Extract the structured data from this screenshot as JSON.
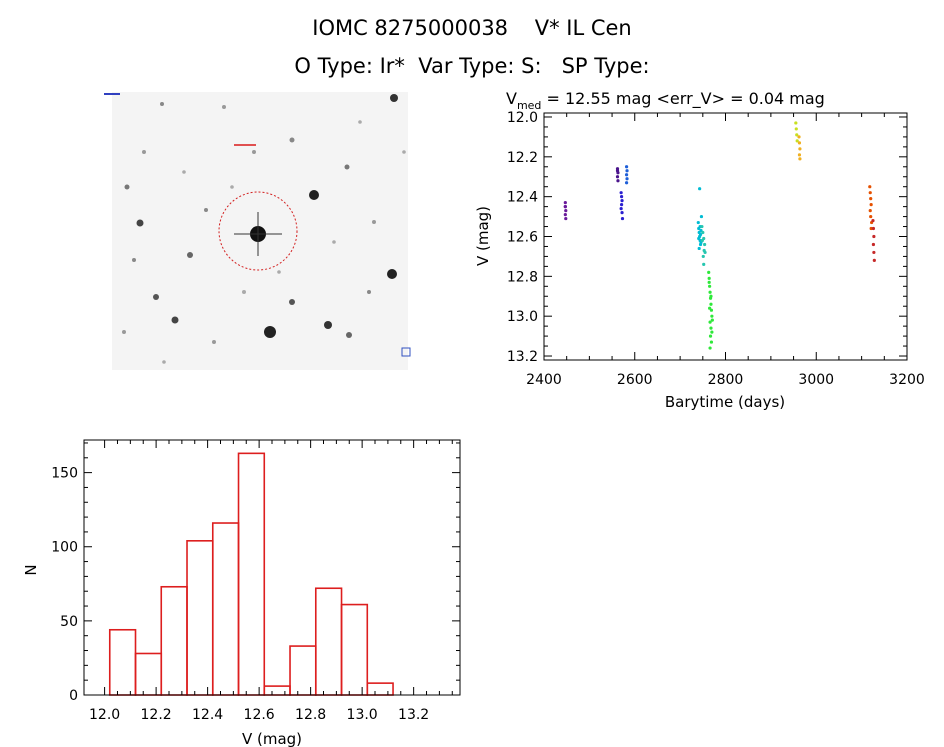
{
  "header": {
    "title_line1": "IOMC 8275000038    V* IL Cen",
    "title_line2": "O Type: Ir*  Var Type: S:   SP Type:"
  },
  "chart_data": [
    {
      "type": "scatter",
      "title_main": "V",
      "title_sub": "med",
      "title_rest": " = 12.55 mag <err_V> = 0.04 mag",
      "xlabel": "Barytime (days)",
      "ylabel": "V (mag)",
      "xlim": [
        2400,
        3200
      ],
      "ylim": [
        13.22,
        11.98
      ],
      "xticks": [
        2400,
        2600,
        2800,
        3000,
        3200
      ],
      "yticks": [
        12.0,
        12.2,
        12.4,
        12.6,
        12.8,
        13.0,
        13.2
      ],
      "series": [
        {
          "name": "group-1",
          "color": "#6a1b9a",
          "x": [
            2447,
            2447,
            2448,
            2447,
            2448,
            2447
          ],
          "y": [
            12.43,
            12.45,
            12.47,
            12.49,
            12.51,
            12.45
          ]
        },
        {
          "name": "group-2",
          "color": "#4a148c",
          "x": [
            2562,
            2563,
            2562,
            2563,
            2562
          ],
          "y": [
            12.26,
            12.28,
            12.3,
            12.32,
            12.27
          ]
        },
        {
          "name": "group-3",
          "color": "#2a1fd0",
          "x": [
            2570,
            2571,
            2572,
            2571,
            2570,
            2572,
            2573
          ],
          "y": [
            12.38,
            12.4,
            12.42,
            12.44,
            12.46,
            12.48,
            12.51
          ]
        },
        {
          "name": "group-4",
          "color": "#1e5fd8",
          "x": [
            2582,
            2583,
            2582,
            2583,
            2582
          ],
          "y": [
            12.25,
            12.27,
            12.29,
            12.31,
            12.33
          ]
        },
        {
          "name": "group-5",
          "color": "#00bcd4",
          "x": [
            2740,
            2741,
            2742,
            2743,
            2744,
            2745,
            2746,
            2742,
            2744,
            2741,
            2745,
            2746,
            2743,
            2747
          ],
          "y": [
            12.53,
            12.56,
            12.58,
            12.6,
            12.62,
            12.64,
            12.57,
            12.66,
            12.55,
            12.61,
            12.59,
            12.63,
            12.36,
            12.5
          ]
        },
        {
          "name": "group-6",
          "color": "#26c6b0",
          "x": [
            2748,
            2750,
            2752,
            2754,
            2753,
            2751,
            2749,
            2755,
            2752
          ],
          "y": [
            12.55,
            12.58,
            12.61,
            12.64,
            12.67,
            12.7,
            12.62,
            12.68,
            12.74
          ]
        },
        {
          "name": "group-7",
          "color": "#2ee83a",
          "x": [
            2763,
            2764,
            2765,
            2766,
            2767,
            2768,
            2769,
            2770,
            2766,
            2768,
            2764,
            2770,
            2767,
            2765,
            2769,
            2771,
            2766,
            2768
          ],
          "y": [
            12.78,
            12.81,
            12.85,
            12.88,
            12.91,
            12.94,
            12.97,
            13.0,
            13.03,
            13.06,
            12.83,
            13.08,
            13.1,
            12.96,
            13.13,
            13.02,
            13.16,
            12.9
          ]
        },
        {
          "name": "group-8",
          "color": "#c8e020",
          "x": [
            2955,
            2956,
            2957,
            2958
          ],
          "y": [
            12.03,
            12.06,
            12.09,
            12.12
          ]
        },
        {
          "name": "group-9",
          "color": "#f0b020",
          "x": [
            2962,
            2963,
            2964,
            2963,
            2964
          ],
          "y": [
            12.1,
            12.13,
            12.16,
            12.19,
            12.21
          ]
        },
        {
          "name": "group-10",
          "color": "#e65100",
          "x": [
            3118,
            3119,
            3120,
            3121,
            3119,
            3120,
            3122,
            3121
          ],
          "y": [
            12.35,
            12.38,
            12.41,
            12.44,
            12.47,
            12.5,
            12.53,
            12.56
          ]
        },
        {
          "name": "group-11",
          "color": "#c62828",
          "x": [
            3125,
            3126,
            3127,
            3126,
            3127,
            3128
          ],
          "y": [
            12.52,
            12.56,
            12.6,
            12.64,
            12.68,
            12.72
          ]
        }
      ]
    },
    {
      "type": "bar",
      "xlabel": "V (mag)",
      "ylabel": "N",
      "xlim": [
        11.92,
        13.38
      ],
      "ylim": [
        0,
        172
      ],
      "xticks": [
        12.0,
        12.2,
        12.4,
        12.6,
        12.8,
        13.0,
        13.2
      ],
      "yticks": [
        0,
        50,
        100,
        150
      ],
      "bin_width": 0.1,
      "bin_starts": [
        12.02,
        12.12,
        12.22,
        12.32,
        12.42,
        12.52,
        12.62,
        12.72,
        12.82,
        12.92,
        13.02,
        13.12
      ],
      "values": [
        44,
        28,
        73,
        104,
        116,
        163,
        6,
        33,
        72,
        61,
        8,
        0
      ],
      "bar_color": "#dd1e1e"
    }
  ]
}
